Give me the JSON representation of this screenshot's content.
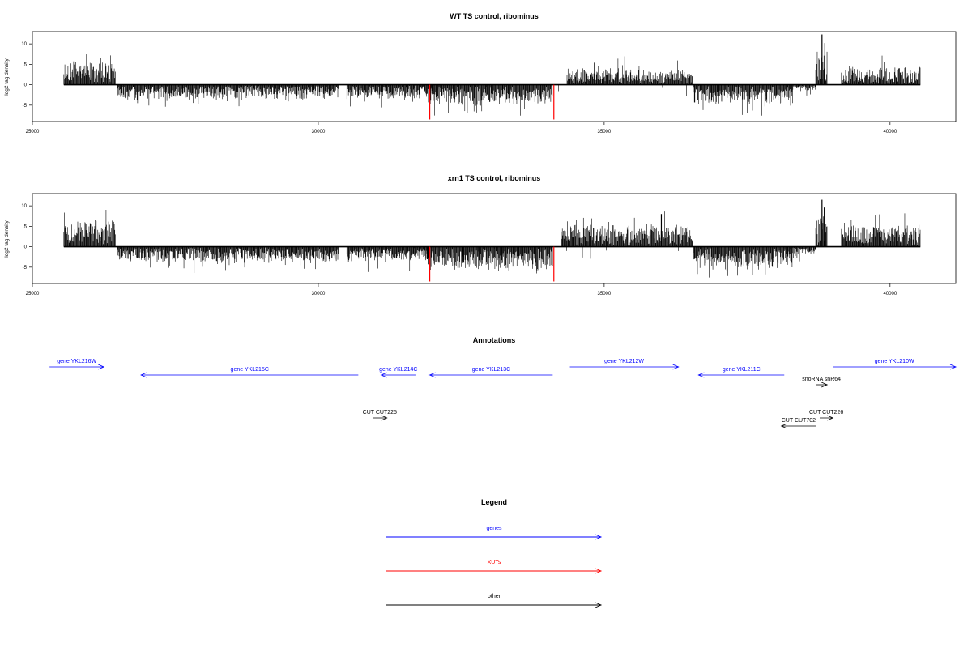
{
  "colors": {
    "genes": "#0000ff",
    "xuts": "#ff0000",
    "other": "#000000",
    "bars": "#000000",
    "markers": "#ff0000"
  },
  "chart_data": [
    {
      "type": "bar",
      "title": "WT TS control, ribominus",
      "ylabel": "log2 tag density",
      "xlim": [
        25000,
        41150
      ],
      "ylim": [
        -9,
        13
      ],
      "xticks": [
        25000,
        30000,
        35000,
        40000
      ],
      "yticks": [
        -5,
        0,
        5,
        10
      ],
      "segments": [
        {
          "start": 25550,
          "end": 26450,
          "strand": "+",
          "level": 4.5,
          "spread": 2.0
        },
        {
          "start": 26480,
          "end": 30350,
          "strand": "-",
          "level": -2.6,
          "spread": 1.2
        },
        {
          "start": 30500,
          "end": 32000,
          "strand": "-",
          "level": -2.4,
          "spread": 1.4
        },
        {
          "start": 31950,
          "end": 34100,
          "strand": "-",
          "level": -3.6,
          "spread": 1.5
        },
        {
          "start": 34350,
          "end": 36550,
          "strand": "+",
          "level": 2.8,
          "spread": 1.5
        },
        {
          "start": 36550,
          "end": 38300,
          "strand": "-",
          "level": -3.4,
          "spread": 1.6
        },
        {
          "start": 38300,
          "end": 38700,
          "strand": "-",
          "level": -1.0,
          "spread": 0.8
        },
        {
          "start": 38700,
          "end": 38900,
          "strand": "+",
          "level": 6.0,
          "spread": 3.5
        },
        {
          "start": 39150,
          "end": 40530,
          "strand": "+",
          "level": 3.4,
          "spread": 1.6
        }
      ],
      "peaks": [
        {
          "x": 38810,
          "value": 12.3
        },
        {
          "x": 38860,
          "value": 10.2
        },
        {
          "x": 34830,
          "value": 5.4
        }
      ],
      "markers": [
        {
          "x": 31950,
          "value": -8.5
        },
        {
          "x": 34120,
          "value": -8.5
        }
      ]
    },
    {
      "type": "bar",
      "title": "xrn1 TS control, ribominus",
      "ylabel": "log2 tag density",
      "xlim": [
        25000,
        41150
      ],
      "ylim": [
        -9,
        13
      ],
      "xticks": [
        25000,
        30000,
        35000,
        40000
      ],
      "yticks": [
        -5,
        0,
        5,
        10
      ],
      "segments": [
        {
          "start": 25550,
          "end": 26450,
          "strand": "+",
          "level": 4.8,
          "spread": 2.0
        },
        {
          "start": 26480,
          "end": 30350,
          "strand": "-",
          "level": -2.8,
          "spread": 1.2
        },
        {
          "start": 30500,
          "end": 31950,
          "strand": "-",
          "level": -2.6,
          "spread": 1.4
        },
        {
          "start": 31900,
          "end": 34100,
          "strand": "-",
          "level": -4.2,
          "spread": 1.6
        },
        {
          "start": 34250,
          "end": 36550,
          "strand": "+",
          "level": 3.8,
          "spread": 1.7
        },
        {
          "start": 36550,
          "end": 38300,
          "strand": "-",
          "level": -4.0,
          "spread": 1.7
        },
        {
          "start": 38300,
          "end": 38700,
          "strand": "-",
          "level": -1.2,
          "spread": 0.8
        },
        {
          "start": 38700,
          "end": 38900,
          "strand": "+",
          "level": 6.0,
          "spread": 3.5
        },
        {
          "start": 39150,
          "end": 40530,
          "strand": "+",
          "level": 4.2,
          "spread": 1.7
        }
      ],
      "peaks": [
        {
          "x": 38810,
          "value": 11.5
        },
        {
          "x": 38850,
          "value": 9.6
        },
        {
          "x": 36000,
          "value": 8.0
        }
      ],
      "markers": [
        {
          "x": 31950,
          "value": -8.5
        },
        {
          "x": 34120,
          "value": -8.5
        }
      ]
    }
  ],
  "annotations": {
    "title": "Annotations",
    "xlim": [
      25000,
      41150
    ],
    "features": [
      {
        "label": "gene YKL216W",
        "start": 25300,
        "end": 26250,
        "strand": "+",
        "row": 0,
        "kind": "gene"
      },
      {
        "label": "gene YKL215C",
        "start": 26900,
        "end": 30700,
        "strand": "-",
        "row": 1,
        "kind": "gene"
      },
      {
        "label": "gene YKL214C",
        "start": 31100,
        "end": 31700,
        "strand": "-",
        "row": 1,
        "kind": "gene"
      },
      {
        "label": "gene YKL213C",
        "start": 31950,
        "end": 34100,
        "strand": "-",
        "row": 1,
        "kind": "gene"
      },
      {
        "label": "gene YKL212W",
        "start": 34400,
        "end": 36300,
        "strand": "+",
        "row": 0,
        "kind": "gene"
      },
      {
        "label": "gene YKL211C",
        "start": 36650,
        "end": 38150,
        "strand": "-",
        "row": 1,
        "kind": "gene"
      },
      {
        "label": "gene YKL210W",
        "start": 39000,
        "end": 41150,
        "strand": "+",
        "row": 0,
        "kind": "gene"
      },
      {
        "label": "snoRNA snR64",
        "start": 38700,
        "end": 38900,
        "strand": "+",
        "row": 2,
        "kind": "other"
      },
      {
        "label": "CUT CUT225",
        "start": 30950,
        "end": 31200,
        "strand": "+",
        "row": 3,
        "kind": "other"
      },
      {
        "label": "CUT CUT226",
        "start": 38770,
        "end": 39000,
        "strand": "+",
        "row": 3,
        "kind": "other"
      },
      {
        "label": "CUT CUT702",
        "start": 38100,
        "end": 38700,
        "strand": "-",
        "row": 4,
        "kind": "other"
      }
    ]
  },
  "legend": {
    "title": "Legend",
    "items": [
      {
        "label": "genes",
        "kind": "genes"
      },
      {
        "label": "XUTs",
        "kind": "xuts"
      },
      {
        "label": "other",
        "kind": "other"
      }
    ]
  }
}
